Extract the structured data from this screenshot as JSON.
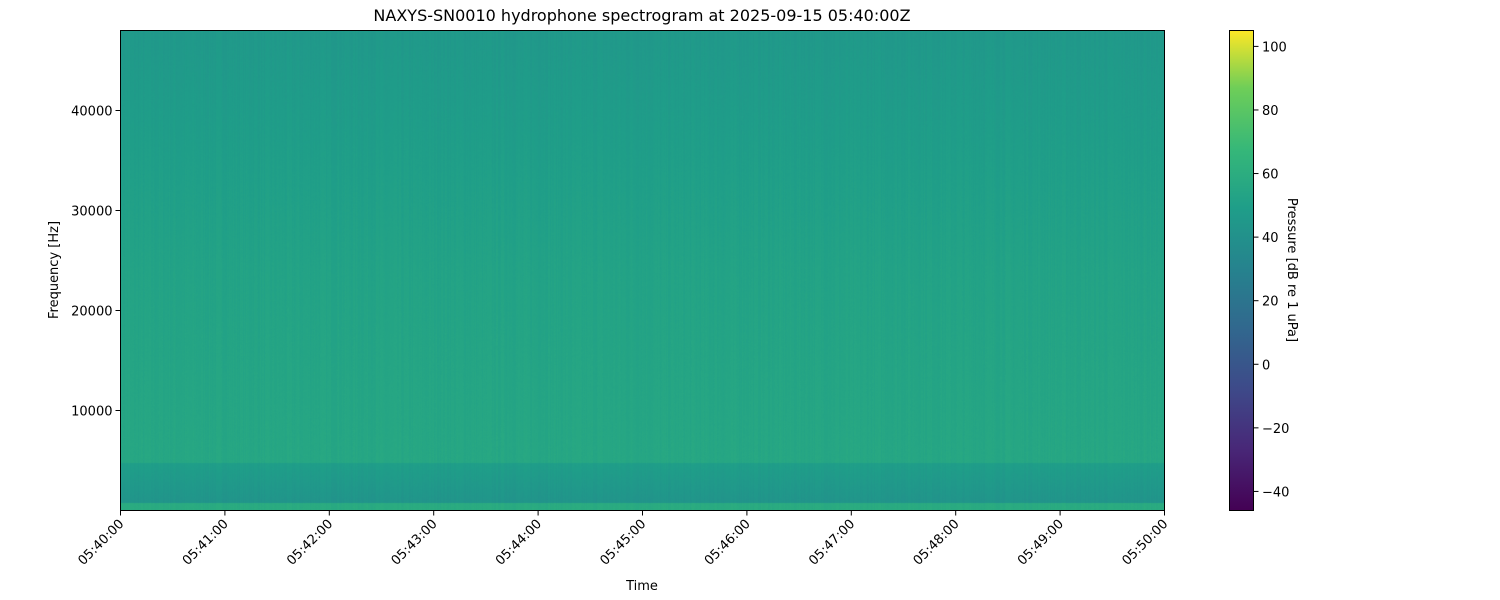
{
  "chart_data": {
    "type": "heatmap",
    "title": "NAXYS-SN0010 hydrophone spectrogram at 2025-09-15 05:40:00Z",
    "xlabel": "Time",
    "ylabel": "Frequency [Hz]",
    "x_ticks": [
      "05:40:00",
      "05:41:00",
      "05:42:00",
      "05:43:00",
      "05:44:00",
      "05:45:00",
      "05:46:00",
      "05:47:00",
      "05:48:00",
      "05:49:00",
      "05:50:00"
    ],
    "xlim": [
      "05:40:00",
      "05:50:00"
    ],
    "y_ticks": [
      10000,
      20000,
      30000,
      40000
    ],
    "ylim": [
      0,
      48000
    ],
    "colormap": "viridis",
    "colorbar": {
      "label": "Pressure [dB re 1 uPa]",
      "ticks": [
        -40,
        -20,
        0,
        20,
        40,
        60,
        80,
        100
      ],
      "range": [
        -46,
        105
      ]
    },
    "description_levels_db": {
      "high_freq": 45,
      "mid_freq": 52,
      "low_freq": 55,
      "near_zero": 42
    }
  }
}
